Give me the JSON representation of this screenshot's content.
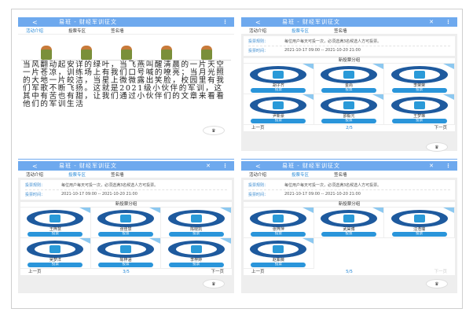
{
  "header": {
    "back": "<",
    "title": "易班 - 财经军训征文",
    "close": "✕",
    "more": "⋮"
  },
  "tabs": [
    "活动介绍",
    "投票专区",
    "签名墙"
  ],
  "story": "当风翻动起安详的绿叶，当飞燕叫醒清晨的一片天空一片苍凉，训练场上有我们口号喊的嘹亮；当月光照的大地一片皎洁，当星上微微露出笑脸，校园里有我们军歌不断飞扬。这就是2021级小伙伴的军训，这其中有苦也有甜，让我们通过小伙伴们的文章来看看他们的军训生活",
  "rules": {
    "label": "投票规则：",
    "text": "每位用户每天可投一次，必须选满3名候选人方可投票。",
    "time_label": "投票时间：",
    "time": "2021-10-17 09:00 -- 2021-10-20 21:00"
  },
  "group_title": "新投票分组",
  "vote_label": "投票",
  "prev": "上一页",
  "next": "下一页",
  "fab": "♛",
  "pages": [
    {
      "page": "2/5",
      "candidates": [
        "胡子齐",
        "金尚",
        "李荣荣",
        "尹新豪",
        "邵毅元",
        "王梦琳"
      ]
    },
    {
      "page": "3/5",
      "candidates": [
        "王梓慧",
        "张佳慧",
        "陈晓凯",
        "吴梦洋",
        "陈梓涵",
        "李梓婷"
      ]
    },
    {
      "page": "5/5",
      "candidates": [
        "张梓萍",
        "武昊博",
        "汪浩瑞",
        "赵紫薇"
      ]
    }
  ],
  "colors": {
    "header": "#6ea9ee",
    "accent": "#2a95da",
    "badge": "#1e5a9e"
  }
}
